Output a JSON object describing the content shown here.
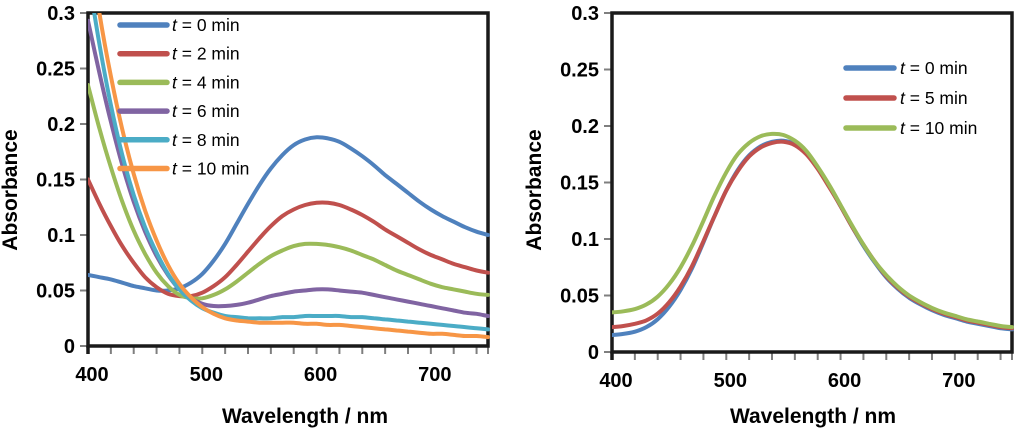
{
  "figure": {
    "background": "#ffffff",
    "frame_color": "#1a1a1a",
    "tick_color": "#7f7f7f"
  },
  "chart_data": [
    {
      "id": "left",
      "type": "line",
      "title": "",
      "xlabel": "Wavelength / nm",
      "ylabel": "Absorbance",
      "xlim": [
        400,
        750
      ],
      "ylim": [
        0,
        0.3
      ],
      "xticks": [
        400,
        500,
        600,
        700
      ],
      "xtick_minor_step": 20,
      "yticks": [
        0,
        0.05,
        0.1,
        0.15,
        0.2,
        0.25,
        0.3
      ],
      "ytick_labels": [
        "0",
        "0.05",
        "0.1",
        "0.15",
        "0.2",
        "0.25",
        "0.3"
      ],
      "grid": false,
      "legend_position": "top-left-inside",
      "x_start": 400,
      "x_step": 10,
      "series": [
        {
          "name": "t = 0 min",
          "color": "#4F81BD",
          "values": [
            0.064,
            0.062,
            0.06,
            0.057,
            0.054,
            0.052,
            0.05,
            0.05,
            0.052,
            0.057,
            0.065,
            0.077,
            0.092,
            0.11,
            0.128,
            0.145,
            0.16,
            0.172,
            0.181,
            0.186,
            0.188,
            0.187,
            0.184,
            0.178,
            0.171,
            0.163,
            0.154,
            0.146,
            0.138,
            0.13,
            0.123,
            0.117,
            0.112,
            0.107,
            0.103,
            0.1
          ]
        },
        {
          "name": "t = 2 min",
          "color": "#C0504D",
          "values": [
            0.15,
            0.128,
            0.108,
            0.09,
            0.075,
            0.062,
            0.053,
            0.047,
            0.045,
            0.045,
            0.048,
            0.054,
            0.062,
            0.073,
            0.085,
            0.097,
            0.108,
            0.117,
            0.123,
            0.127,
            0.129,
            0.129,
            0.127,
            0.123,
            0.118,
            0.112,
            0.105,
            0.099,
            0.093,
            0.087,
            0.082,
            0.078,
            0.074,
            0.071,
            0.068,
            0.066
          ]
        },
        {
          "name": "t = 4 min",
          "color": "#9BBB59",
          "values": [
            0.235,
            0.196,
            0.161,
            0.13,
            0.104,
            0.083,
            0.066,
            0.054,
            0.046,
            0.043,
            0.043,
            0.046,
            0.051,
            0.058,
            0.066,
            0.074,
            0.081,
            0.086,
            0.09,
            0.092,
            0.092,
            0.091,
            0.089,
            0.086,
            0.082,
            0.078,
            0.073,
            0.068,
            0.064,
            0.06,
            0.056,
            0.053,
            0.051,
            0.049,
            0.047,
            0.046
          ]
        },
        {
          "name": "t = 6 min",
          "color": "#8064A2",
          "values": [
            0.293,
            0.246,
            0.202,
            0.163,
            0.13,
            0.103,
            0.081,
            0.064,
            0.051,
            0.043,
            0.038,
            0.036,
            0.036,
            0.037,
            0.039,
            0.042,
            0.045,
            0.047,
            0.049,
            0.05,
            0.051,
            0.051,
            0.05,
            0.049,
            0.048,
            0.046,
            0.044,
            0.042,
            0.04,
            0.038,
            0.036,
            0.034,
            0.032,
            0.03,
            0.029,
            0.027
          ]
        },
        {
          "name": "t = 8 min",
          "color": "#4BACC6",
          "values": [
            0.335,
            0.272,
            0.217,
            0.172,
            0.136,
            0.107,
            0.084,
            0.065,
            0.051,
            0.041,
            0.034,
            0.03,
            0.027,
            0.026,
            0.025,
            0.025,
            0.025,
            0.026,
            0.026,
            0.027,
            0.027,
            0.027,
            0.027,
            0.026,
            0.026,
            0.025,
            0.024,
            0.023,
            0.022,
            0.021,
            0.02,
            0.019,
            0.018,
            0.017,
            0.016,
            0.015
          ]
        },
        {
          "name": "t = 10 min",
          "color": "#F79646",
          "values": [
            0.37,
            0.3,
            0.243,
            0.195,
            0.155,
            0.122,
            0.095,
            0.073,
            0.056,
            0.044,
            0.035,
            0.029,
            0.025,
            0.023,
            0.022,
            0.021,
            0.021,
            0.021,
            0.021,
            0.02,
            0.02,
            0.019,
            0.019,
            0.018,
            0.017,
            0.016,
            0.015,
            0.014,
            0.013,
            0.012,
            0.011,
            0.011,
            0.01,
            0.009,
            0.009,
            0.008
          ]
        }
      ]
    },
    {
      "id": "right",
      "type": "line",
      "title": "",
      "xlabel": "Wavelength / nm",
      "ylabel": "Absorbance",
      "xlim": [
        400,
        750
      ],
      "ylim": [
        0,
        0.3
      ],
      "xticks": [
        400,
        500,
        600,
        700
      ],
      "xtick_minor_step": 20,
      "yticks": [
        0,
        0.05,
        0.1,
        0.15,
        0.2,
        0.25,
        0.3
      ],
      "ytick_labels": [
        "0",
        "0.05",
        "0.1",
        "0.15",
        "0.2",
        "0.25",
        "0.3"
      ],
      "grid": false,
      "legend_position": "top-right-inside",
      "x_start": 400,
      "x_step": 10,
      "series": [
        {
          "name": "t = 0 min",
          "color": "#4F81BD",
          "values": [
            0.015,
            0.016,
            0.018,
            0.022,
            0.029,
            0.04,
            0.055,
            0.074,
            0.097,
            0.121,
            0.143,
            0.161,
            0.174,
            0.182,
            0.186,
            0.187,
            0.184,
            0.176,
            0.163,
            0.147,
            0.129,
            0.111,
            0.094,
            0.079,
            0.066,
            0.056,
            0.048,
            0.042,
            0.037,
            0.033,
            0.03,
            0.027,
            0.025,
            0.023,
            0.021,
            0.02
          ]
        },
        {
          "name": "t = 5 min",
          "color": "#C0504D",
          "values": [
            0.022,
            0.023,
            0.025,
            0.028,
            0.034,
            0.044,
            0.058,
            0.076,
            0.098,
            0.121,
            0.143,
            0.16,
            0.173,
            0.181,
            0.185,
            0.186,
            0.183,
            0.175,
            0.162,
            0.146,
            0.129,
            0.111,
            0.095,
            0.08,
            0.067,
            0.057,
            0.049,
            0.043,
            0.038,
            0.034,
            0.031,
            0.028,
            0.026,
            0.024,
            0.022,
            0.021
          ]
        },
        {
          "name": "t = 10 min",
          "color": "#9BBB59",
          "values": [
            0.035,
            0.036,
            0.038,
            0.042,
            0.049,
            0.06,
            0.075,
            0.094,
            0.116,
            0.139,
            0.159,
            0.175,
            0.185,
            0.191,
            0.193,
            0.192,
            0.187,
            0.178,
            0.164,
            0.148,
            0.13,
            0.112,
            0.095,
            0.08,
            0.068,
            0.058,
            0.05,
            0.044,
            0.039,
            0.035,
            0.032,
            0.029,
            0.027,
            0.025,
            0.023,
            0.022
          ]
        }
      ]
    }
  ]
}
